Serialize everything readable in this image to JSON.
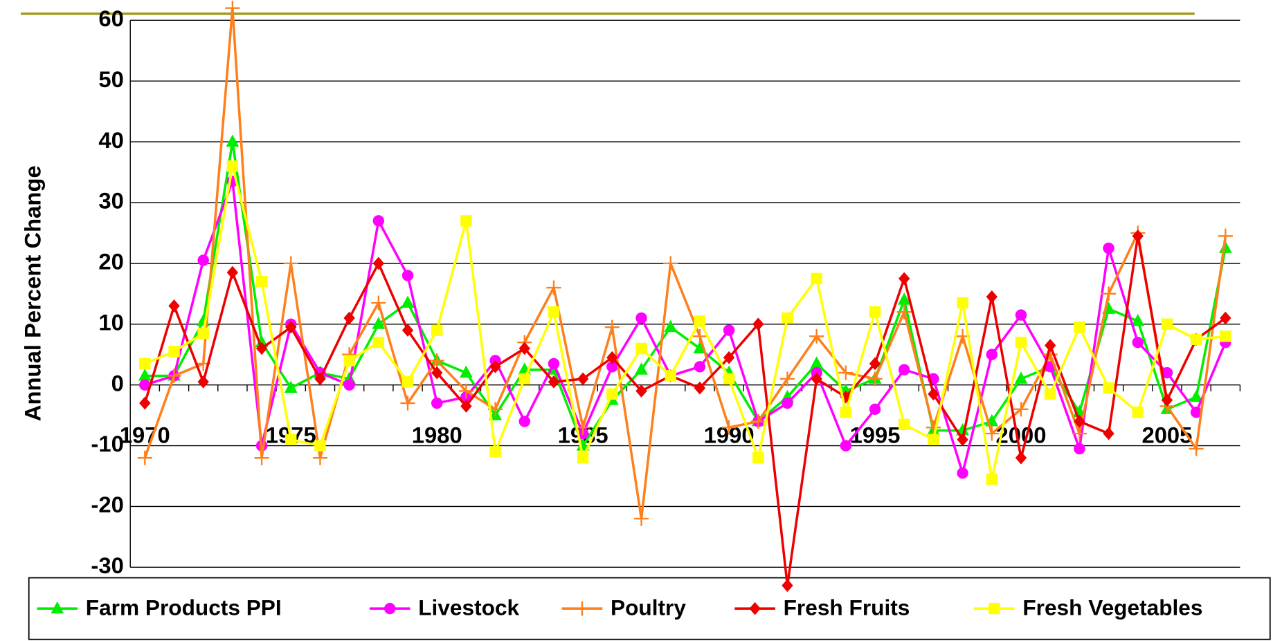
{
  "chart_data": {
    "type": "line",
    "y_label": "Annual Percent Change",
    "x": [
      1970,
      1971,
      1972,
      1973,
      1974,
      1975,
      1976,
      1977,
      1978,
      1979,
      1980,
      1981,
      1982,
      1983,
      1984,
      1985,
      1986,
      1987,
      1988,
      1989,
      1990,
      1991,
      1992,
      1993,
      1994,
      1995,
      1996,
      1997,
      1998,
      1999,
      2000,
      2001,
      2002,
      2003,
      2004,
      2005,
      2006,
      2007
    ],
    "xlim": [
      1969.5,
      2007.5
    ],
    "xticks": [
      1970,
      1975,
      1980,
      1985,
      1990,
      1995,
      2000,
      2005
    ],
    "ylim": [
      -30,
      60
    ],
    "yticks": [
      -30,
      -20,
      -10,
      0,
      10,
      20,
      30,
      40,
      50,
      60
    ],
    "grid": true,
    "legend": "bottom",
    "series": [
      {
        "name": "Farm Products PPI",
        "color": "#00ee00",
        "marker": "triangle",
        "values": [
          1.5,
          1.5,
          10.5,
          40,
          7,
          -0.5,
          2,
          1,
          10,
          13.5,
          4,
          2,
          -5,
          2.5,
          2.5,
          -10,
          -2.5,
          2.5,
          9.5,
          6,
          2,
          -6,
          -2,
          3.5,
          -1,
          1,
          14,
          -7.5,
          -7.5,
          -6,
          1,
          3,
          -4.5,
          12.5,
          10.5,
          -4,
          -2,
          22.5
        ]
      },
      {
        "name": "Livestock",
        "color": "#ff00ff",
        "marker": "circle",
        "values": [
          0,
          1.5,
          20.5,
          33.5,
          -10,
          10,
          2,
          0,
          27,
          18,
          -3,
          -2,
          4,
          -6,
          3.5,
          -8,
          3,
          11,
          1.5,
          3,
          9,
          -6,
          -3,
          2,
          -10,
          -4,
          2.5,
          1,
          -14.5,
          5,
          11.5,
          3,
          -10.5,
          22.5,
          7,
          2,
          -4.5,
          7
        ]
      },
      {
        "name": "Poultry",
        "color": "#ff7f1a",
        "marker": "plus",
        "values": [
          -12,
          1.5,
          3.5,
          62,
          -12,
          20,
          -12,
          5,
          13.5,
          -3,
          4,
          -1,
          -4,
          7,
          16,
          -7,
          9.5,
          -22,
          20,
          8,
          -7,
          -6,
          1,
          8,
          2,
          1,
          12,
          -7,
          8,
          -8,
          -4,
          5,
          -8,
          15,
          25,
          -3.5,
          -10.5,
          24.5
        ]
      },
      {
        "name": "Fresh Fruits",
        "color": "#ee0000",
        "marker": "diamond",
        "values": [
          -3,
          13,
          0.5,
          18.5,
          6,
          9.5,
          1,
          11,
          20,
          9,
          2,
          -3.5,
          3,
          6,
          0.5,
          1,
          4.5,
          -1,
          1.5,
          -0.5,
          4.5,
          10,
          -33,
          1,
          -2,
          3.5,
          17.5,
          -1.5,
          -9,
          14.5,
          -12,
          6.5,
          -6,
          -8,
          24.5,
          -2.5,
          7.5,
          11
        ]
      },
      {
        "name": "Fresh Vegetables",
        "color": "#ffff00",
        "marker": "square",
        "values": [
          3.5,
          5.5,
          8.5,
          36,
          17,
          -9,
          -10,
          4,
          7,
          0.5,
          9,
          27,
          -11,
          1,
          12,
          -12,
          -1.5,
          6,
          1.5,
          10.5,
          1,
          -12,
          11,
          17.5,
          -4.5,
          12,
          -6.5,
          -9,
          13.5,
          -15.5,
          7,
          -1.5,
          9.5,
          -0.5,
          -4.5,
          10,
          7.5,
          8
        ]
      }
    ]
  }
}
